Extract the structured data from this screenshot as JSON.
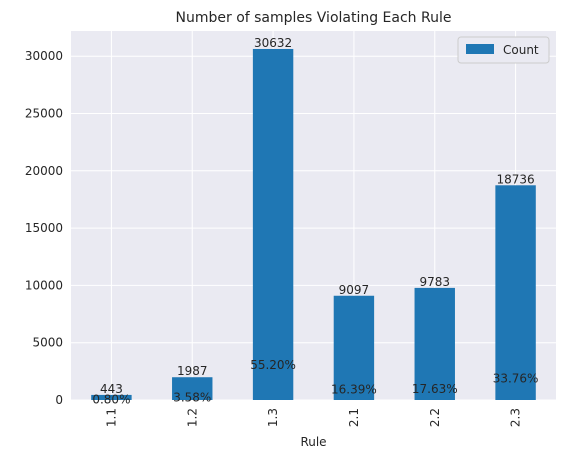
{
  "chart_data": {
    "type": "bar",
    "title": "Number of samples Violating Each Rule",
    "xlabel": "Rule",
    "ylabel": "",
    "categories": [
      "1.1",
      "1.2",
      "1.3",
      "2.1",
      "2.2",
      "2.3"
    ],
    "series": [
      {
        "name": "Count",
        "values": [
          443,
          1987,
          30632,
          9097,
          9783,
          18736
        ]
      }
    ],
    "value_labels": [
      "443",
      "1987",
      "30632",
      "9097",
      "9783",
      "18736"
    ],
    "percent_labels": [
      "0.80%",
      "3.58%",
      "55.20%",
      "16.39%",
      "17.63%",
      "33.76%"
    ],
    "yticks": [
      0,
      5000,
      10000,
      15000,
      20000,
      25000,
      30000
    ],
    "ylim": [
      0,
      32200
    ],
    "grid": true,
    "legend_position": "top-right",
    "colors": {
      "bar": "#1f77b4",
      "plot_background": "#eaeaf2",
      "grid": "#ffffff"
    }
  }
}
